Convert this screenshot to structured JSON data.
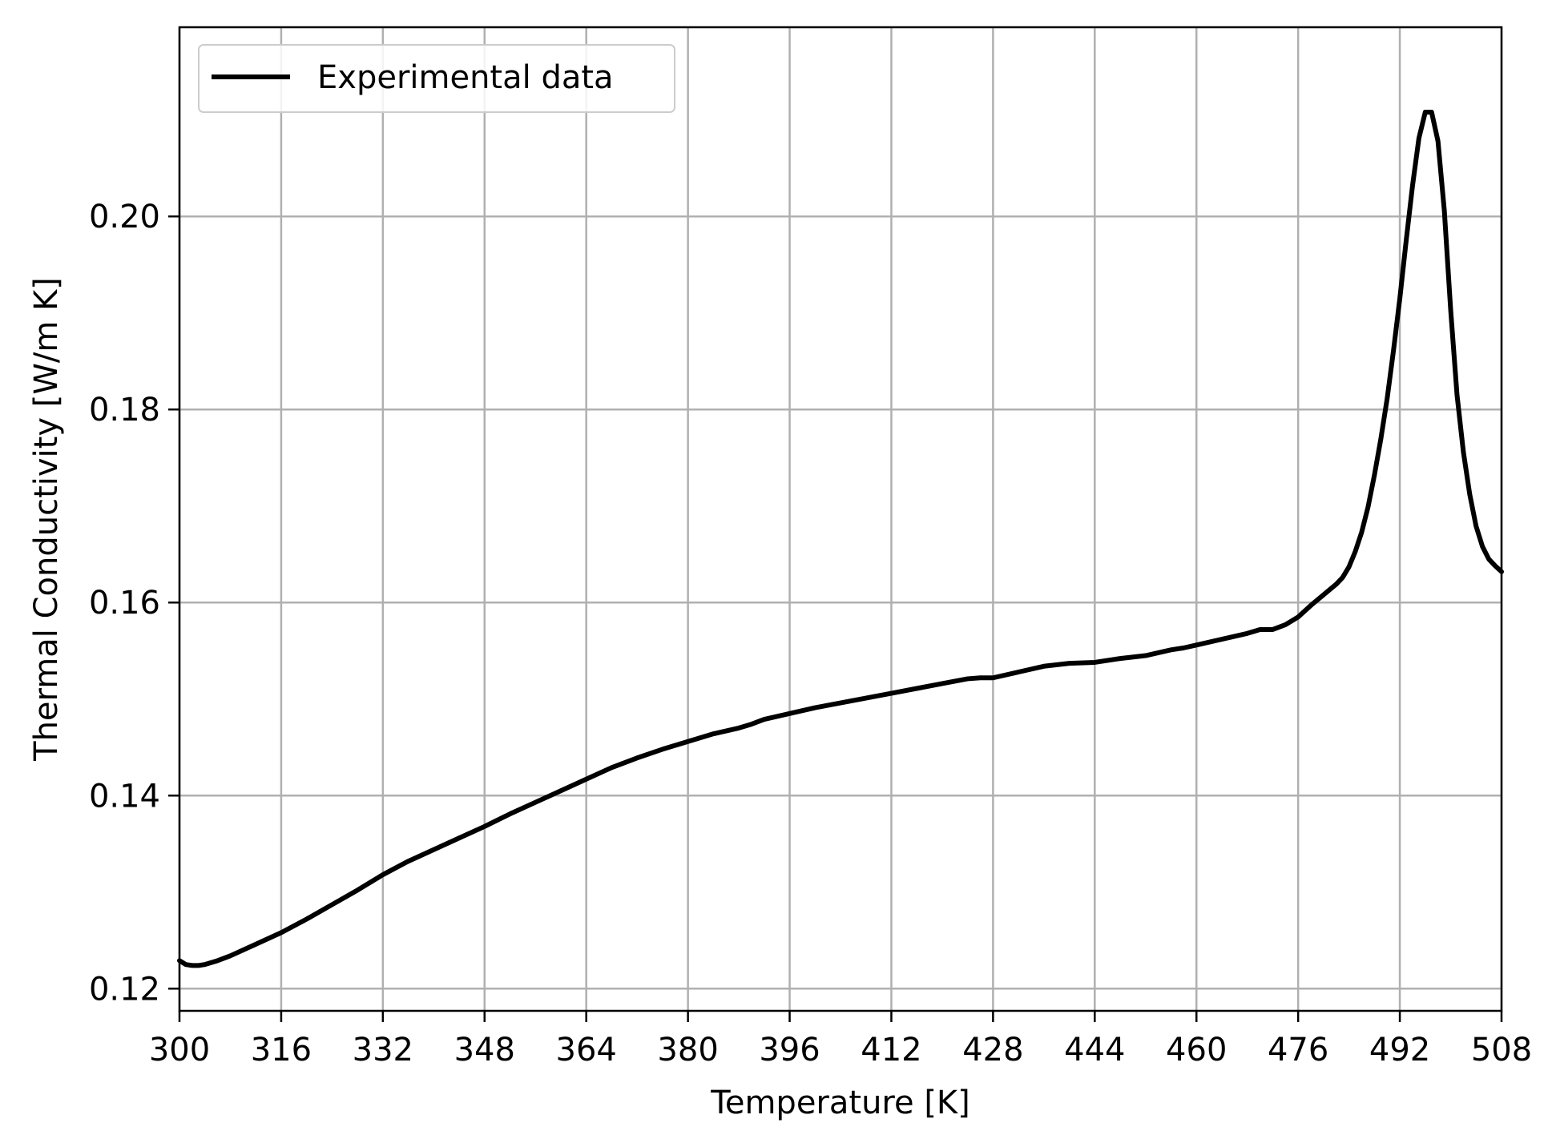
{
  "chart_data": {
    "type": "line",
    "title": "",
    "xlabel": "Temperature [K]",
    "ylabel": "Thermal Conductivity [W/m K]",
    "xlim": [
      300,
      508
    ],
    "ylim": [
      0.1177,
      0.2196
    ],
    "x_ticks": [
      300,
      316,
      332,
      348,
      364,
      380,
      396,
      412,
      428,
      444,
      460,
      476,
      492,
      508
    ],
    "x_tick_labels": [
      "300",
      "316",
      "332",
      "348",
      "364",
      "380",
      "396",
      "412",
      "428",
      "444",
      "460",
      "476",
      "492",
      "508"
    ],
    "y_ticks": [
      0.12,
      0.14,
      0.16,
      0.18,
      0.2
    ],
    "y_tick_labels": [
      "0.12",
      "0.14",
      "0.16",
      "0.18",
      "0.20"
    ],
    "grid": true,
    "legend_position": "top-left",
    "series": [
      {
        "name": "Experimental data",
        "color": "#000000",
        "x": [
          300,
          301,
          302,
          303,
          304,
          306,
          308,
          312,
          316,
          320,
          324,
          328,
          332,
          336,
          340,
          344,
          348,
          352,
          356,
          360,
          364,
          368,
          372,
          376,
          380,
          384,
          388,
          390,
          392,
          396,
          400,
          404,
          408,
          412,
          416,
          420,
          424,
          426,
          428,
          432,
          436,
          440,
          444,
          448,
          452,
          456,
          458,
          460,
          464,
          468,
          470,
          472,
          474,
          476,
          478,
          480,
          482,
          483,
          484,
          485,
          486,
          487,
          488,
          489,
          490,
          491,
          492,
          493,
          494,
          495,
          496,
          497,
          498,
          499,
          500,
          501,
          502,
          503,
          504,
          505,
          506,
          507,
          508
        ],
        "y": [
          0.1229,
          0.1225,
          0.1224,
          0.1224,
          0.1225,
          0.1229,
          0.1234,
          0.1246,
          0.1258,
          0.1272,
          0.1287,
          0.1302,
          0.1318,
          0.1332,
          0.1344,
          0.1356,
          0.1368,
          0.1381,
          0.1393,
          0.1405,
          0.1417,
          0.1429,
          0.1439,
          0.1448,
          0.1456,
          0.1464,
          0.147,
          0.1474,
          0.1479,
          0.1485,
          0.1491,
          0.1496,
          0.1501,
          0.1506,
          0.1511,
          0.1516,
          0.1521,
          0.1522,
          0.1522,
          0.1528,
          0.1534,
          0.1537,
          0.1538,
          0.1542,
          0.1545,
          0.1551,
          0.1553,
          0.1556,
          0.1562,
          0.1568,
          0.1572,
          0.1572,
          0.1577,
          0.1585,
          0.1597,
          0.1608,
          0.1619,
          0.1626,
          0.1637,
          0.1653,
          0.1673,
          0.1699,
          0.1732,
          0.1769,
          0.1811,
          0.1861,
          0.1915,
          0.1975,
          0.2032,
          0.2081,
          0.2108,
          0.2108,
          0.2078,
          0.2006,
          0.1903,
          0.1815,
          0.1756,
          0.1712,
          0.1679,
          0.1658,
          0.1645,
          0.1638,
          0.1632
        ]
      }
    ]
  }
}
